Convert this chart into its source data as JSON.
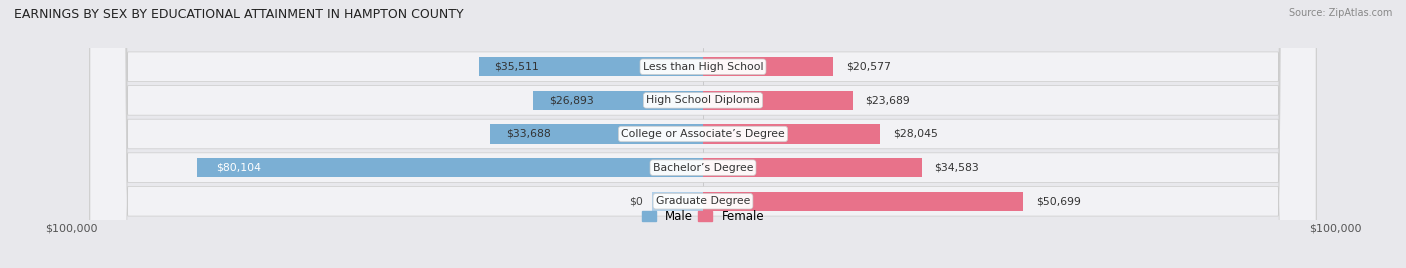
{
  "title": "EARNINGS BY SEX BY EDUCATIONAL ATTAINMENT IN HAMPTON COUNTY",
  "source": "Source: ZipAtlas.com",
  "categories": [
    "Less than High School",
    "High School Diploma",
    "College or Associate’s Degree",
    "Bachelor’s Degree",
    "Graduate Degree"
  ],
  "male_values": [
    35511,
    26893,
    33688,
    80104,
    0
  ],
  "female_values": [
    20577,
    23689,
    28045,
    34583,
    50699
  ],
  "male_grad_small": 8000,
  "male_labels": [
    "$35,511",
    "$26,893",
    "$33,688",
    "$80,104",
    "$0"
  ],
  "female_labels": [
    "$20,577",
    "$23,689",
    "$28,045",
    "$34,583",
    "$50,699"
  ],
  "male_color": "#7bafd4",
  "female_color": "#e8728a",
  "male_color_faded": "#b0cfe8",
  "bg_color": "#e8e8ec",
  "row_bg_light": "#f2f2f5",
  "row_bg_dark": "#e0e0e5",
  "x_min": -100000,
  "x_max": 100000,
  "title_fontsize": 9.0,
  "label_fontsize": 7.8,
  "tick_fontsize": 8.0,
  "legend_fontsize": 8.5,
  "bar_height": 0.58
}
